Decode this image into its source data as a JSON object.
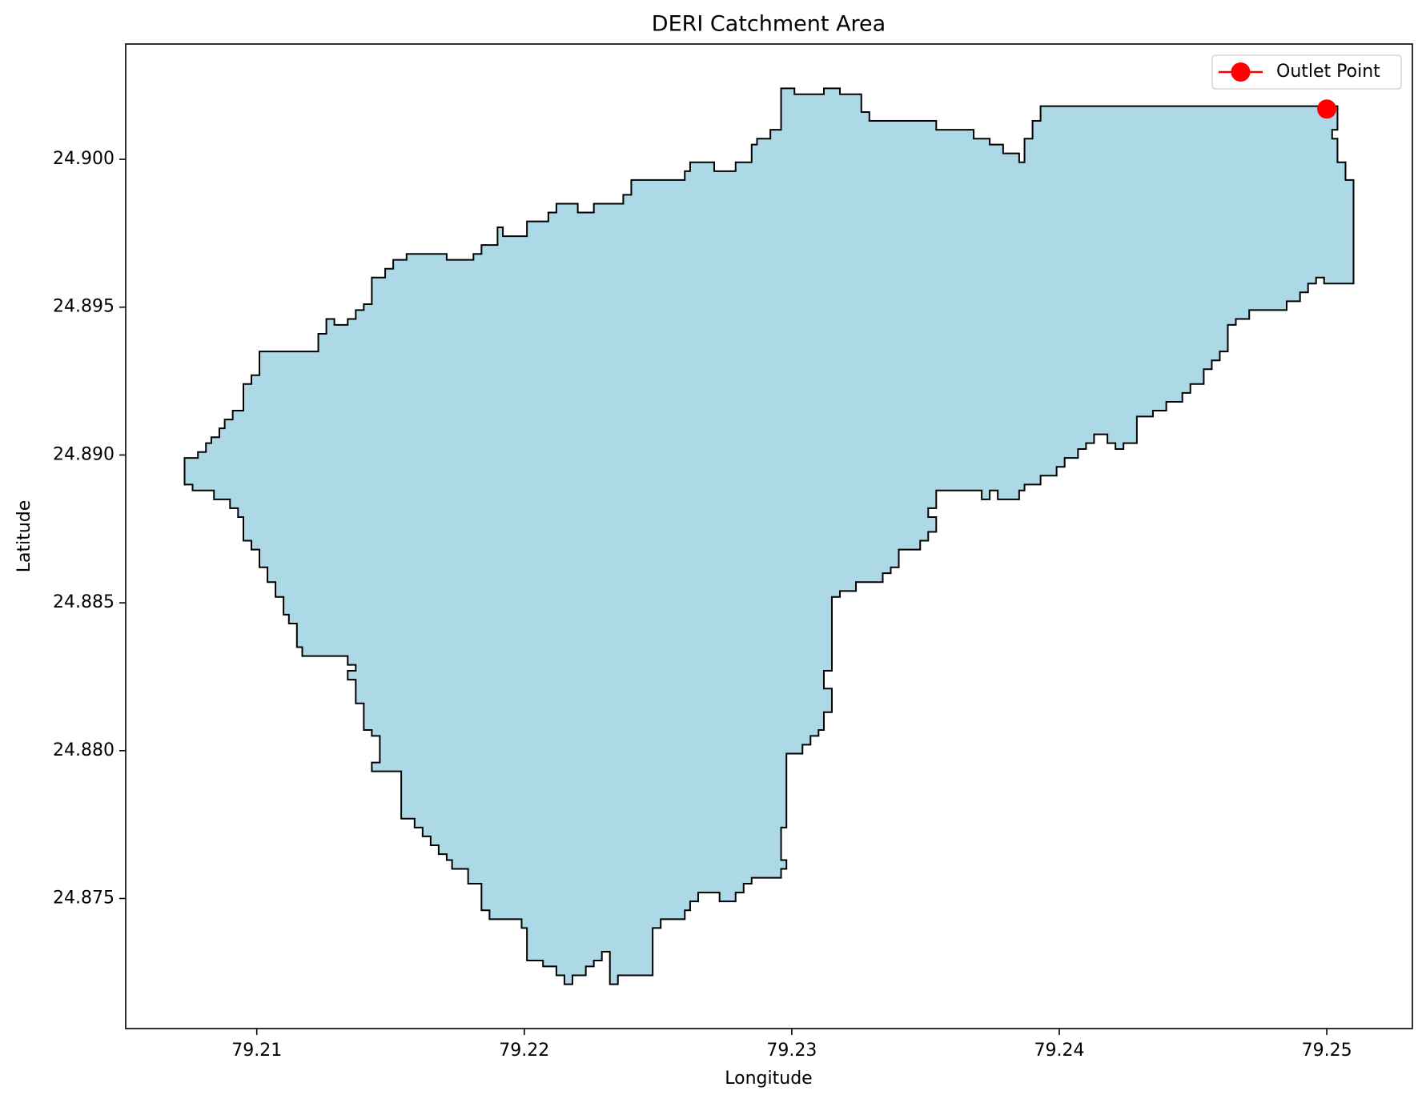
{
  "chart_data": {
    "type": "polygon",
    "title": "DERI Catchment Area",
    "x_label": "Longitude",
    "y_label": "Latitude",
    "xlim": [
      79.2051,
      79.2532
    ],
    "ylim": [
      24.8706,
      24.9039
    ],
    "xticks": [
      79.21,
      79.22,
      79.23,
      79.24,
      79.25
    ],
    "yticks": [
      {
        "value": 24.875,
        "label": "24.875"
      },
      {
        "value": 24.88,
        "label": "24.880"
      },
      {
        "value": 24.885,
        "label": "24.885"
      },
      {
        "value": 24.89,
        "label": "24.890"
      },
      {
        "value": 24.895,
        "label": "24.895"
      },
      {
        "value": 24.9,
        "label": "24.900"
      }
    ],
    "legend": "upper right",
    "polygon": {
      "fill": "#add8e6",
      "edgecolor": "#000000",
      "x": [
        79.2073,
        79.2078,
        79.2078,
        79.2081,
        79.2081,
        79.2083,
        79.2083,
        79.2086,
        79.2086,
        79.2088,
        79.2088,
        79.2091,
        79.2091,
        79.2095,
        79.2095,
        79.2098,
        79.2098,
        79.2101,
        79.2101,
        79.2123,
        79.2123,
        79.2126,
        79.2126,
        79.2129,
        79.2129,
        79.2134,
        79.2134,
        79.2137,
        79.2137,
        79.214,
        79.214,
        79.2143,
        79.2143,
        79.2148,
        79.2148,
        79.2151,
        79.2151,
        79.2156,
        79.2156,
        79.2171,
        79.2171,
        79.2181,
        79.2181,
        79.2184,
        79.2184,
        79.219,
        79.219,
        79.2192,
        79.2192,
        79.2201,
        79.2201,
        79.2209,
        79.2209,
        79.2212,
        79.2212,
        79.222,
        79.222,
        79.2226,
        79.2226,
        79.2237,
        79.2237,
        79.224,
        79.224,
        79.226,
        79.226,
        79.2262,
        79.2262,
        79.2271,
        79.2271,
        79.2279,
        79.2279,
        79.2285,
        79.2285,
        79.2287,
        79.2287,
        79.2292,
        79.2292,
        79.2296,
        79.2296,
        79.2301,
        79.2301,
        79.2312,
        79.2312,
        79.2318,
        79.2318,
        79.2326,
        79.2326,
        79.2329,
        79.2329,
        79.2354,
        79.2354,
        79.2368,
        79.2368,
        79.2374,
        79.2374,
        79.2379,
        79.2379,
        79.2385,
        79.2385,
        79.2387,
        79.2387,
        79.239,
        79.239,
        79.2393,
        79.2393,
        79.2504,
        79.2504,
        79.2502,
        79.2502,
        79.2504,
        79.2504,
        79.2507,
        79.2507,
        79.251,
        79.251,
        79.2499,
        79.2499,
        79.2496,
        79.2496,
        79.2493,
        79.2493,
        79.249,
        79.249,
        79.2485,
        79.2485,
        79.2471,
        79.2471,
        79.2466,
        79.2466,
        79.2463,
        79.2463,
        79.246,
        79.246,
        79.2457,
        79.2457,
        79.2454,
        79.2454,
        79.2449,
        79.2449,
        79.2446,
        79.2446,
        79.244,
        79.244,
        79.2435,
        79.2435,
        79.2429,
        79.2429,
        79.2424,
        79.2424,
        79.2421,
        79.2421,
        79.2418,
        79.2418,
        79.2413,
        79.2413,
        79.241,
        79.241,
        79.2407,
        79.2407,
        79.2402,
        79.2402,
        79.2399,
        79.2399,
        79.2393,
        79.2393,
        79.2387,
        79.2387,
        79.2385,
        79.2385,
        79.2377,
        79.2377,
        79.2374,
        79.2374,
        79.2371,
        79.2371,
        79.2354,
        79.2354,
        79.2351,
        79.2351,
        79.2354,
        79.2354,
        79.2351,
        79.2351,
        79.2348,
        79.2348,
        79.234,
        79.234,
        79.2337,
        79.2337,
        79.2334,
        79.2334,
        79.2324,
        79.2324,
        79.2318,
        79.2318,
        79.2315,
        79.2315,
        79.2312,
        79.2312,
        79.2315,
        79.2315,
        79.2312,
        79.2312,
        79.231,
        79.231,
        79.2307,
        79.2307,
        79.2304,
        79.2304,
        79.2298,
        79.2298,
        79.2296,
        79.2296,
        79.2298,
        79.2298,
        79.2296,
        79.2296,
        79.2285,
        79.2285,
        79.2282,
        79.2282,
        79.2279,
        79.2279,
        79.2273,
        79.2273,
        79.2265,
        79.2265,
        79.2262,
        79.2262,
        79.226,
        79.226,
        79.2251,
        79.2251,
        79.2248,
        79.2248,
        79.2235,
        79.2235,
        79.2232,
        79.2232,
        79.2229,
        79.2229,
        79.2226,
        79.2226,
        79.2223,
        79.2223,
        79.2218,
        79.2218,
        79.2215,
        79.2215,
        79.2212,
        79.2212,
        79.2207,
        79.2207,
        79.2201,
        79.2201,
        79.2199,
        79.2199,
        79.2187,
        79.2187,
        79.2184,
        79.2184,
        79.2179,
        79.2179,
        79.2173,
        79.2173,
        79.2171,
        79.2171,
        79.2168,
        79.2168,
        79.2165,
        79.2165,
        79.2162,
        79.2162,
        79.2159,
        79.2159,
        79.2154,
        79.2154,
        79.2143,
        79.2143,
        79.2146,
        79.2146,
        79.2143,
        79.2143,
        79.214,
        79.214,
        79.2137,
        79.2137,
        79.2134,
        79.2134,
        79.2137,
        79.2137,
        79.2134,
        79.2134,
        79.2117,
        79.2117,
        79.2115,
        79.2115,
        79.2112,
        79.2112,
        79.211,
        79.211,
        79.2107,
        79.2107,
        79.2104,
        79.2104,
        79.2101,
        79.2101,
        79.2098,
        79.2098,
        79.2095,
        79.2095,
        79.2093,
        79.2093,
        79.209,
        79.209,
        79.2084,
        79.2084,
        79.2076,
        79.2076,
        79.2073
      ],
      "y": [
        24.8899,
        24.8899,
        24.8901,
        24.8901,
        24.8904,
        24.8904,
        24.8906,
        24.8906,
        24.8909,
        24.8909,
        24.8912,
        24.8912,
        24.8915,
        24.8915,
        24.8924,
        24.8924,
        24.8927,
        24.8927,
        24.8935,
        24.8935,
        24.8941,
        24.8941,
        24.8946,
        24.8946,
        24.8944,
        24.8944,
        24.8946,
        24.8946,
        24.8949,
        24.8949,
        24.8951,
        24.8951,
        24.896,
        24.896,
        24.8963,
        24.8963,
        24.8966,
        24.8966,
        24.8968,
        24.8968,
        24.8966,
        24.8966,
        24.8968,
        24.8968,
        24.8971,
        24.8971,
        24.8977,
        24.8977,
        24.8974,
        24.8974,
        24.8979,
        24.8979,
        24.8982,
        24.8982,
        24.8985,
        24.8985,
        24.8982,
        24.8982,
        24.8985,
        24.8985,
        24.8988,
        24.8988,
        24.8993,
        24.8993,
        24.8996,
        24.8996,
        24.8999,
        24.8999,
        24.8996,
        24.8996,
        24.8999,
        24.8999,
        24.9005,
        24.9005,
        24.9007,
        24.9007,
        24.901,
        24.901,
        24.9024,
        24.9024,
        24.9022,
        24.9022,
        24.9024,
        24.9024,
        24.9022,
        24.9022,
        24.9016,
        24.9016,
        24.9013,
        24.9013,
        24.901,
        24.901,
        24.9007,
        24.9007,
        24.9005,
        24.9005,
        24.9002,
        24.9002,
        24.8999,
        24.8999,
        24.9007,
        24.9007,
        24.9013,
        24.9013,
        24.9018,
        24.9018,
        24.901,
        24.901,
        24.9007,
        24.9007,
        24.8999,
        24.8999,
        24.8993,
        24.8993,
        24.8958,
        24.8958,
        24.896,
        24.896,
        24.8958,
        24.8958,
        24.8955,
        24.8955,
        24.8952,
        24.8952,
        24.8949,
        24.8949,
        24.8946,
        24.8946,
        24.8944,
        24.8944,
        24.8935,
        24.8935,
        24.8932,
        24.8932,
        24.8929,
        24.8929,
        24.8924,
        24.8924,
        24.8921,
        24.8921,
        24.8918,
        24.8918,
        24.8915,
        24.8915,
        24.8913,
        24.8913,
        24.8904,
        24.8904,
        24.8902,
        24.8902,
        24.8904,
        24.8904,
        24.8907,
        24.8907,
        24.8904,
        24.8904,
        24.8902,
        24.8902,
        24.8899,
        24.8899,
        24.8896,
        24.8896,
        24.8893,
        24.8893,
        24.889,
        24.889,
        24.8888,
        24.8888,
        24.8885,
        24.8885,
        24.8888,
        24.8888,
        24.8885,
        24.8885,
        24.8888,
        24.8888,
        24.8882,
        24.8882,
        24.8879,
        24.8879,
        24.8874,
        24.8874,
        24.8871,
        24.8871,
        24.8868,
        24.8868,
        24.8862,
        24.8862,
        24.886,
        24.886,
        24.8857,
        24.8857,
        24.8854,
        24.8854,
        24.8852,
        24.8852,
        24.8827,
        24.8827,
        24.8821,
        24.8821,
        24.8813,
        24.8813,
        24.8807,
        24.8807,
        24.8805,
        24.8805,
        24.8802,
        24.8802,
        24.8799,
        24.8799,
        24.8774,
        24.8774,
        24.8763,
        24.8763,
        24.876,
        24.876,
        24.8757,
        24.8757,
        24.8755,
        24.8755,
        24.8752,
        24.8752,
        24.8749,
        24.8749,
        24.8752,
        24.8752,
        24.8749,
        24.8749,
        24.8746,
        24.8746,
        24.8743,
        24.8743,
        24.874,
        24.874,
        24.8724,
        24.8724,
        24.8721,
        24.8721,
        24.8732,
        24.8732,
        24.8729,
        24.8729,
        24.8727,
        24.8727,
        24.8724,
        24.8724,
        24.8721,
        24.8721,
        24.8724,
        24.8724,
        24.8727,
        24.8727,
        24.8729,
        24.8729,
        24.874,
        24.874,
        24.8743,
        24.8743,
        24.8746,
        24.8746,
        24.8755,
        24.8755,
        24.876,
        24.876,
        24.8763,
        24.8763,
        24.8765,
        24.8765,
        24.8768,
        24.8768,
        24.8771,
        24.8771,
        24.8774,
        24.8774,
        24.8777,
        24.8777,
        24.8793,
        24.8793,
        24.8796,
        24.8796,
        24.8805,
        24.8805,
        24.8807,
        24.8807,
        24.8816,
        24.8816,
        24.8824,
        24.8824,
        24.8827,
        24.8827,
        24.8829,
        24.8829,
        24.8832,
        24.8832,
        24.8835,
        24.8835,
        24.8843,
        24.8843,
        24.8846,
        24.8846,
        24.8852,
        24.8852,
        24.8857,
        24.8857,
        24.8862,
        24.8862,
        24.8868,
        24.8868,
        24.8871,
        24.8871,
        24.8879,
        24.8879,
        24.8882,
        24.8882,
        24.8885,
        24.8885,
        24.8888,
        24.8888,
        24.889,
        24.889
      ]
    },
    "series": [
      {
        "name": "Outlet Point",
        "color": "#ff0000",
        "x": [
          79.25
        ],
        "y": [
          24.9017
        ]
      }
    ]
  }
}
